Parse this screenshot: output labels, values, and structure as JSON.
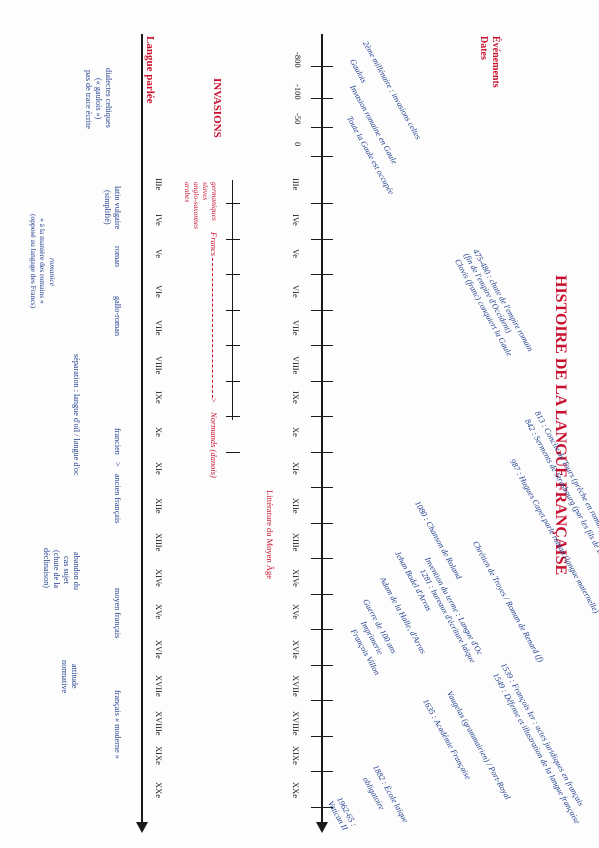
{
  "title": "HISTOIRE DE LA LANGUE FRANÇAISE",
  "headers": {
    "events": "Événements",
    "dates": "Dates",
    "langue": "Langue parlée",
    "invasions": "INVASIONS",
    "litterature": "Littérature du Moyen Âge"
  },
  "dates_ancient": [
    "-800",
    "-100",
    "-50",
    "0"
  ],
  "centuries": [
    "IIIe",
    "IVe",
    "Ve",
    "VIe",
    "VIIe",
    "VIIIe",
    "IXe",
    "Xe",
    "XIe",
    "XIIe",
    "XIIIe",
    "XIVe",
    "XVe",
    "XVIe",
    "XVIIe",
    "XVIIIe",
    "XIXe",
    "XXe"
  ],
  "events_ancient": [
    "2ème millénaire : invasions celtes",
    "Gaulois",
    "Invasion romaine en Gaule",
    "Toute la Gaule est occupée"
  ],
  "events": [
    "475-480 : chute de l'empire romain",
    "(fin de l'empire d'Occident)",
    "Clovis (franc) conquiert la Gaule",
    "813 : Concile de Tours (prêche en roman)",
    "842 : Serments de Strasbourg (par les fils de Louis le Pieux)",
    "987 : Hugues Capet parle roman (langue maternelle)",
    "1080 : Chanson de Roland",
    "Chrétien de Troyes / Roman de Renard (f)",
    "Jehan Bodel d'Arras",
    "Invention du terme : Langue d'Oc",
    "1281 : bureaux d'écriture laïque",
    "Adam de la Halle, d'Arras",
    "Guerre de 100 ans",
    "Imprimerie",
    "François Villon",
    "1539 : François Ier : actes juridiques en français",
    "1549 : Défense et illustration de la langue française",
    "Vaugelas (grammairien) / Port-Royal",
    "1635 : Académie Française",
    "1882 : École laïque",
    "obligatoire",
    "1962-65 :",
    "Vatican II"
  ],
  "invasions": {
    "peoples": [
      "germaniques",
      "slaves",
      "anglo-saxonnes",
      "arabes"
    ],
    "francs": "Francs",
    "normands": "Normands (danois)",
    "arrow": ">"
  },
  "langue": {
    "celt": [
      "dialectes celtiques",
      "(« gaulois »)",
      "pas de trace écrite"
    ],
    "latin": [
      "latin vulgaire",
      "(simplifié)"
    ],
    "roman": "roman",
    "gallo": "gallo-roman",
    "francien": "francien",
    "gt": ">",
    "ancien": "ancien français",
    "moyen": "moyen français",
    "moderne": "français « moderne »",
    "separation": "séparation : langue d'oïl / langue d'oc",
    "abandon": [
      "abandon du",
      "cas sujet",
      "(chute de la",
      "déclinaison)"
    ],
    "attitude": [
      "attitude",
      "normative"
    ],
    "note_a": "romanice",
    "note_b": "« à la manière des romains »",
    "note_c": "(opposé au langage des Francs)"
  },
  "colors": {
    "blue": "#1c3b8c",
    "red": "#c8102e",
    "ink": "#1a1a1a"
  }
}
